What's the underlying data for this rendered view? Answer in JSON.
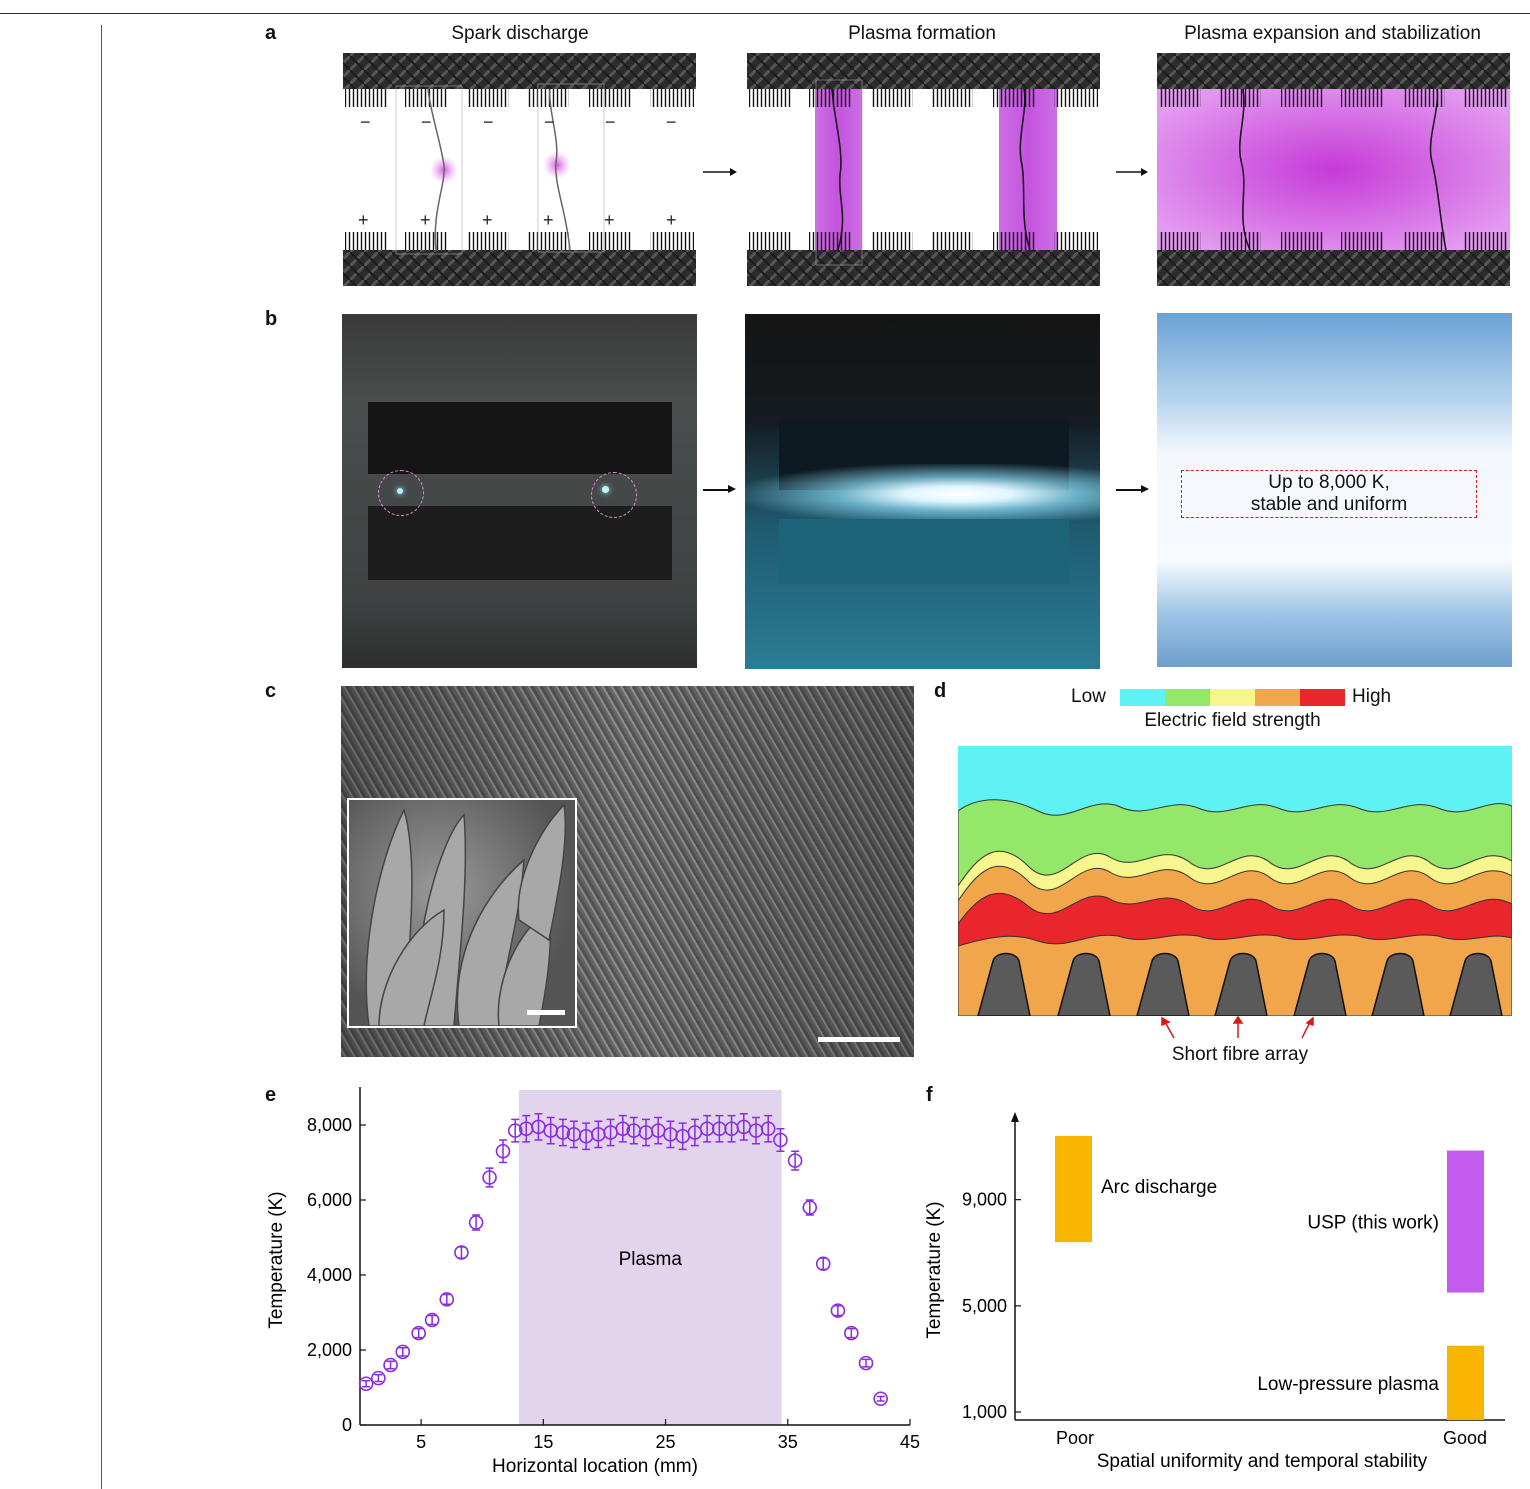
{
  "panel_labels": {
    "a": "a",
    "b": "b",
    "c": "c",
    "d": "d",
    "e": "e",
    "f": "f"
  },
  "panel_a": {
    "titles": [
      "Spark discharge",
      "Plasma formation",
      "Plasma expansion and stabilization"
    ],
    "minus_sign": "−",
    "plus_sign": "+",
    "colors": {
      "plasma": "#c040e0",
      "fibre": "#2a2a2a"
    }
  },
  "panel_b": {
    "annotation_line1": "Up to 8,000 K,",
    "annotation_line2": "stable and uniform"
  },
  "panel_d": {
    "legend_low": "Low",
    "legend_high": "High",
    "legend_title": "Electric field strength",
    "legend_colors": [
      "#5ef2f5",
      "#93e86a",
      "#f6f58e",
      "#f2a64b",
      "#e8262b"
    ],
    "array_label": "Short fibre array"
  },
  "panel_e": {
    "chart_data": {
      "type": "scatter",
      "xlabel": "Horizontal location (mm)",
      "ylabel": "Temperature (K)",
      "xlim": [
        0,
        45
      ],
      "ylim": [
        0,
        8800
      ],
      "xticks": [
        5,
        15,
        25,
        35,
        45
      ],
      "yticks": [
        0,
        2000,
        4000,
        6000,
        8000
      ],
      "ytick_labels": [
        "0",
        "2,000",
        "4,000",
        "6,000",
        "8,000"
      ],
      "shaded_region": {
        "x": [
          13,
          34.5
        ],
        "label": "Plasma",
        "color": "#e2d4ec"
      },
      "marker_color": "#8a2be2",
      "points": [
        {
          "x": 0.5,
          "y": 1100,
          "err": 80
        },
        {
          "x": 1.5,
          "y": 1250,
          "err": 90
        },
        {
          "x": 2.5,
          "y": 1600,
          "err": 100
        },
        {
          "x": 3.5,
          "y": 1950,
          "err": 110
        },
        {
          "x": 4.8,
          "y": 2450,
          "err": 120
        },
        {
          "x": 5.9,
          "y": 2800,
          "err": 120
        },
        {
          "x": 7.1,
          "y": 3350,
          "err": 130
        },
        {
          "x": 8.3,
          "y": 4600,
          "err": 150
        },
        {
          "x": 9.5,
          "y": 5400,
          "err": 200
        },
        {
          "x": 10.6,
          "y": 6600,
          "err": 250
        },
        {
          "x": 11.7,
          "y": 7300,
          "err": 300
        },
        {
          "x": 12.7,
          "y": 7850,
          "err": 300
        },
        {
          "x": 13.6,
          "y": 7900,
          "err": 350
        },
        {
          "x": 14.6,
          "y": 7950,
          "err": 350
        },
        {
          "x": 15.6,
          "y": 7850,
          "err": 350
        },
        {
          "x": 16.6,
          "y": 7800,
          "err": 350
        },
        {
          "x": 17.5,
          "y": 7750,
          "err": 350
        },
        {
          "x": 18.5,
          "y": 7700,
          "err": 350
        },
        {
          "x": 19.5,
          "y": 7750,
          "err": 350
        },
        {
          "x": 20.5,
          "y": 7800,
          "err": 350
        },
        {
          "x": 21.5,
          "y": 7900,
          "err": 350
        },
        {
          "x": 22.4,
          "y": 7850,
          "err": 350
        },
        {
          "x": 23.4,
          "y": 7800,
          "err": 350
        },
        {
          "x": 24.4,
          "y": 7850,
          "err": 350
        },
        {
          "x": 25.4,
          "y": 7750,
          "err": 350
        },
        {
          "x": 26.4,
          "y": 7700,
          "err": 350
        },
        {
          "x": 27.4,
          "y": 7800,
          "err": 350
        },
        {
          "x": 28.4,
          "y": 7900,
          "err": 350
        },
        {
          "x": 29.4,
          "y": 7900,
          "err": 350
        },
        {
          "x": 30.4,
          "y": 7900,
          "err": 350
        },
        {
          "x": 31.4,
          "y": 7950,
          "err": 350
        },
        {
          "x": 32.4,
          "y": 7850,
          "err": 350
        },
        {
          "x": 33.4,
          "y": 7900,
          "err": 350
        },
        {
          "x": 34.4,
          "y": 7600,
          "err": 300
        },
        {
          "x": 35.6,
          "y": 7050,
          "err": 250
        },
        {
          "x": 36.8,
          "y": 5800,
          "err": 200
        },
        {
          "x": 37.9,
          "y": 4300,
          "err": 150
        },
        {
          "x": 39.1,
          "y": 3050,
          "err": 130
        },
        {
          "x": 40.2,
          "y": 2450,
          "err": 120
        },
        {
          "x": 41.4,
          "y": 1650,
          "err": 100
        },
        {
          "x": 42.6,
          "y": 700,
          "err": 60
        }
      ]
    }
  },
  "panel_f": {
    "chart_data": {
      "type": "bar",
      "xlabel": "Spatial uniformity and temporal stability",
      "ylabel": "Temperature (K)",
      "xtick_labels": [
        "Poor",
        "Good"
      ],
      "yticks": [
        1000,
        5000,
        9000
      ],
      "ytick_labels": [
        "1,000",
        "5,000",
        "9,000"
      ],
      "ylim": [
        700,
        12000
      ],
      "bars": [
        {
          "label": "Arc discharge",
          "x": "Poor",
          "y_low": 7400,
          "y_high": 11400,
          "color": "#f7b500"
        },
        {
          "label": "USP (this work)",
          "x": "Good",
          "y_low": 5500,
          "y_high": 10850,
          "color": "#c55cf0"
        },
        {
          "label": "Low-pressure plasma",
          "x": "Good",
          "y_low": 500,
          "y_high": 3500,
          "color": "#f7b500"
        }
      ]
    }
  }
}
